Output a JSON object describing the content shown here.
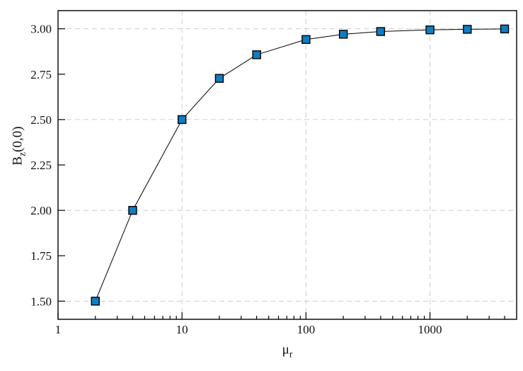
{
  "chart_data": {
    "type": "line",
    "title": "",
    "xlabel": {
      "base": "μ",
      "sub": "r"
    },
    "ylabel": {
      "base": "B",
      "sub": "z",
      "rest": "(0,0)"
    },
    "xscale": "log",
    "yscale": "linear",
    "xlim": [
      1,
      5000
    ],
    "ylim": [
      1.4,
      3.1
    ],
    "x": [
      2,
      4,
      10,
      20,
      40,
      100,
      200,
      400,
      1000,
      2000,
      4000
    ],
    "y": [
      1.5,
      2.0,
      2.5,
      2.727,
      2.857,
      2.941,
      2.97,
      2.985,
      2.994,
      2.997,
      2.999
    ],
    "x_major_ticks": [
      1,
      10,
      100,
      1000
    ],
    "x_tick_labels": [
      "1",
      "10",
      "100",
      "1000"
    ],
    "y_ticks": [
      1.5,
      1.75,
      2.0,
      2.25,
      2.5,
      2.75,
      3.0
    ],
    "y_tick_labels": [
      "1.50",
      "1.75",
      "2.00",
      "2.25",
      "2.50",
      "2.75",
      "3.00"
    ],
    "x_gridlines": [
      10,
      100,
      1000
    ],
    "y_gridlines": [
      1.5,
      2.0,
      2.5,
      3.0
    ],
    "grid_style": "dashed",
    "grid_on": true,
    "legend": null,
    "marker": "square",
    "marker_color": "#0f7dc2",
    "marker_edge_color": "#000000",
    "line_color": "#000000",
    "grid_color": "#cdcdcd",
    "frame_color": "#000000",
    "text_color": "#101018",
    "background_color": "#ffffff"
  }
}
